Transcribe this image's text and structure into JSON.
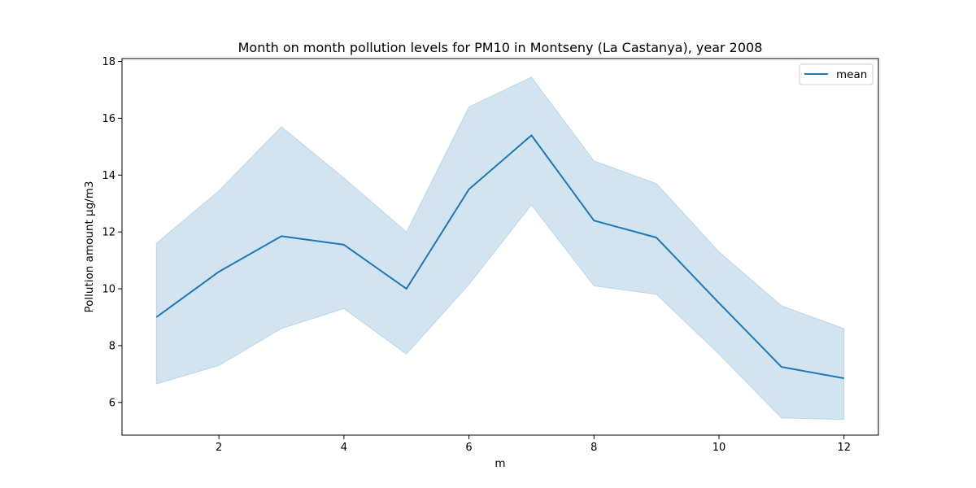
{
  "chart_data": {
    "type": "line",
    "title": "Month on month pollution levels for PM10 in Montseny (La Castanya), year 2008",
    "xlabel": "m",
    "ylabel": "Pollution amount µg/m3",
    "xlim": [
      0.45,
      12.55
    ],
    "ylim": [
      4.85,
      18.1
    ],
    "xticks": [
      2,
      4,
      6,
      8,
      10,
      12
    ],
    "yticks": [
      6,
      8,
      10,
      12,
      14,
      16,
      18
    ],
    "legend_position": "top-right",
    "grid": false,
    "x": [
      1,
      2,
      3,
      4,
      5,
      6,
      7,
      8,
      9,
      10,
      11,
      12
    ],
    "series": [
      {
        "name": "mean",
        "color": "#1f77b4",
        "values": [
          9.0,
          10.6,
          11.85,
          11.55,
          10.0,
          13.5,
          15.4,
          12.4,
          11.8,
          9.5,
          7.25,
          6.85
        ],
        "lower": [
          6.65,
          7.3,
          8.6,
          9.3,
          7.7,
          10.15,
          12.95,
          10.1,
          9.8,
          7.7,
          5.45,
          5.4
        ],
        "upper": [
          11.6,
          13.45,
          15.7,
          13.9,
          12.0,
          16.4,
          17.45,
          14.5,
          13.7,
          11.3,
          9.4,
          8.6
        ]
      }
    ]
  }
}
